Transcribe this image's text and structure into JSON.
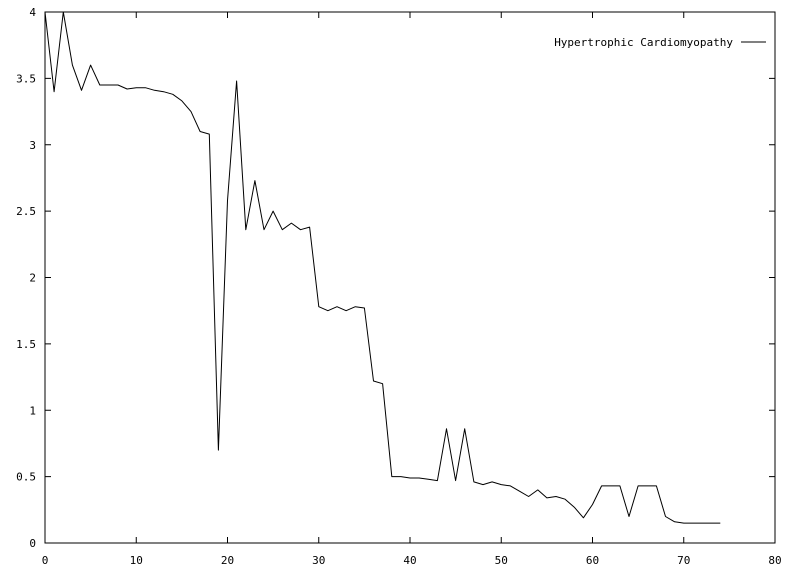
{
  "chart_data": {
    "type": "line",
    "title": "",
    "xlabel": "",
    "ylabel": "",
    "xlim": [
      0,
      80
    ],
    "ylim": [
      0,
      4
    ],
    "xticks": [
      0,
      10,
      20,
      30,
      40,
      50,
      60,
      70,
      80
    ],
    "xtick_labels": [
      "0",
      "10",
      "20",
      "30",
      "40",
      "50",
      "60",
      "70",
      "80"
    ],
    "yticks": [
      0,
      0.5,
      1,
      1.5,
      2,
      2.5,
      3,
      3.5,
      4
    ],
    "ytick_labels": [
      "0",
      "0.5",
      "1",
      "1.5",
      "2",
      "2.5",
      "3",
      "3.5",
      "4"
    ],
    "grid": false,
    "legend_position": "top-right",
    "colors": {
      "line": "#000000",
      "axes": "#000000",
      "background": "#ffffff"
    },
    "series": [
      {
        "name": "Hypertrophic Cardiomyopathy",
        "x": [
          0,
          1,
          2,
          3,
          4,
          5,
          6,
          7,
          8,
          9,
          10,
          11,
          12,
          13,
          14,
          15,
          16,
          17,
          18,
          19,
          20,
          21,
          22,
          23,
          24,
          25,
          26,
          27,
          28,
          29,
          30,
          31,
          32,
          33,
          34,
          35,
          36,
          37,
          38,
          39,
          40,
          41,
          42,
          43,
          44,
          45,
          46,
          47,
          48,
          49,
          50,
          51,
          52,
          53,
          54,
          55,
          56,
          57,
          58,
          59,
          60,
          61,
          62,
          63,
          64,
          65,
          66,
          67,
          68,
          69,
          70,
          71,
          72,
          73,
          74
        ],
        "y": [
          4.0,
          3.4,
          4.0,
          3.6,
          3.41,
          3.6,
          3.45,
          3.45,
          3.45,
          3.42,
          3.43,
          3.43,
          3.41,
          3.4,
          3.38,
          3.33,
          3.25,
          3.1,
          3.08,
          0.7,
          2.58,
          3.48,
          2.36,
          2.73,
          2.36,
          2.5,
          2.36,
          2.41,
          2.36,
          2.38,
          1.78,
          1.75,
          1.78,
          1.75,
          1.78,
          1.77,
          1.22,
          1.2,
          0.5,
          0.5,
          0.49,
          0.49,
          0.48,
          0.47,
          0.86,
          0.47,
          0.86,
          0.46,
          0.44,
          0.46,
          0.44,
          0.43,
          0.39,
          0.35,
          0.4,
          0.34,
          0.35,
          0.33,
          0.27,
          0.19,
          0.29,
          0.43,
          0.43,
          0.43,
          0.2,
          0.43,
          0.43,
          0.43,
          0.2,
          0.16,
          0.15,
          0.15,
          0.15,
          0.15,
          0.15
        ]
      }
    ]
  }
}
